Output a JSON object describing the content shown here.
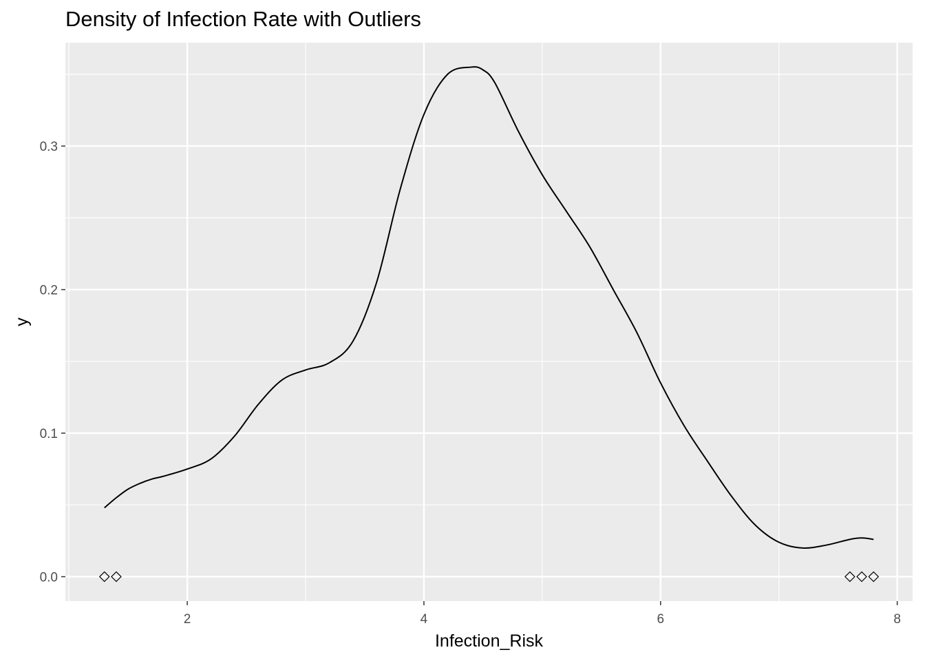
{
  "chart_data": {
    "type": "line",
    "title": "Density of Infection Rate with Outliers",
    "xlabel": "Infection_Risk",
    "ylabel": "y",
    "xlim": [
      0.97,
      8.13
    ],
    "ylim": [
      -0.017,
      0.372
    ],
    "x_ticks": [
      2,
      4,
      6,
      8
    ],
    "x_tick_labels": [
      "2",
      "4",
      "6",
      "8"
    ],
    "y_ticks": [
      0.0,
      0.1,
      0.2,
      0.3
    ],
    "y_tick_labels": [
      "0.0",
      "0.1",
      "0.2",
      "0.3"
    ],
    "grid": true,
    "legend": "none",
    "series": [
      {
        "kind": "density-line",
        "color": "#000000",
        "x": [
          1.3,
          1.4,
          1.5,
          1.6,
          1.7,
          1.8,
          2.0,
          2.2,
          2.4,
          2.6,
          2.8,
          3.0,
          3.2,
          3.4,
          3.6,
          3.8,
          4.0,
          4.2,
          4.4,
          4.5,
          4.6,
          4.8,
          5.0,
          5.2,
          5.4,
          5.6,
          5.8,
          6.0,
          6.2,
          6.4,
          6.6,
          6.8,
          7.0,
          7.2,
          7.4,
          7.6,
          7.7,
          7.8
        ],
        "y": [
          0.048,
          0.055,
          0.061,
          0.065,
          0.068,
          0.07,
          0.075,
          0.082,
          0.098,
          0.12,
          0.137,
          0.144,
          0.149,
          0.164,
          0.205,
          0.27,
          0.322,
          0.35,
          0.355,
          0.353,
          0.344,
          0.31,
          0.28,
          0.255,
          0.23,
          0.2,
          0.17,
          0.135,
          0.105,
          0.08,
          0.056,
          0.036,
          0.024,
          0.02,
          0.022,
          0.026,
          0.027,
          0.026
        ]
      },
      {
        "kind": "outlier-points",
        "shape": "diamond-open",
        "color": "#000000",
        "x": [
          1.3,
          1.4,
          7.6,
          7.7,
          7.8
        ],
        "y": [
          0,
          0,
          0,
          0,
          0
        ]
      }
    ]
  }
}
